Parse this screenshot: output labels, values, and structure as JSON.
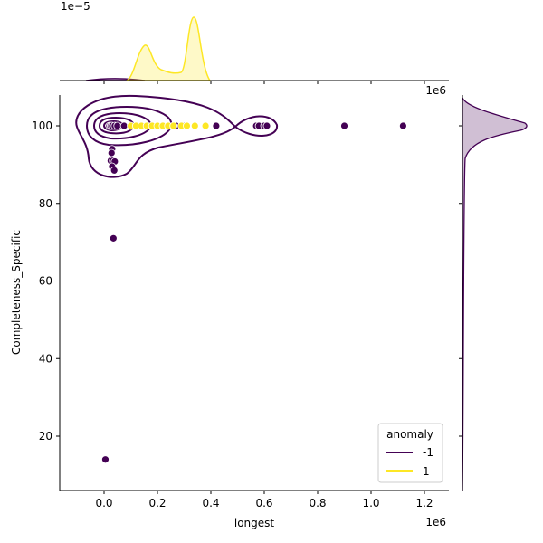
{
  "chart_data": {
    "type": "scatter",
    "xlabel": "longest",
    "ylabel": "Completeness_Specific",
    "x_offset_label": "1e6",
    "top_marginal_offset_label": "1e−5",
    "xlim": [
      -170000,
      1290000
    ],
    "ylim": [
      6,
      108
    ],
    "x_ticks": [
      0,
      200000,
      400000,
      600000,
      800000,
      1000000,
      1200000
    ],
    "x_tick_labels": [
      "0.0",
      "0.2",
      "0.4",
      "0.6",
      "0.8",
      "1.0",
      "1.2"
    ],
    "y_ticks": [
      20,
      40,
      60,
      80,
      100
    ],
    "y_tick_labels": [
      "20",
      "40",
      "60",
      "80",
      "100"
    ],
    "grid": false,
    "legend": {
      "title": "anomaly",
      "placement": "bottom-right",
      "entries": [
        "-1",
        "1"
      ]
    },
    "series": [
      {
        "name": "-1",
        "color": "#440154",
        "points": [
          [
            5000,
            14
          ],
          [
            35000,
            71
          ],
          [
            30000,
            94
          ],
          [
            28000,
            93
          ],
          [
            25000,
            91
          ],
          [
            33000,
            91
          ],
          [
            40000,
            90.8
          ],
          [
            30000,
            89.5
          ],
          [
            38000,
            88.5
          ],
          [
            20000,
            100
          ],
          [
            25000,
            100
          ],
          [
            30000,
            100
          ],
          [
            40000,
            100
          ],
          [
            50000,
            100
          ],
          [
            75000,
            100
          ],
          [
            270000,
            100
          ],
          [
            300000,
            100
          ],
          [
            420000,
            100
          ],
          [
            570000,
            100
          ],
          [
            580000,
            100
          ],
          [
            600000,
            100
          ],
          [
            610000,
            100
          ],
          [
            900000,
            100
          ],
          [
            1120000,
            100
          ]
        ]
      },
      {
        "name": "1",
        "color": "#fde725",
        "points": [
          [
            100000,
            100
          ],
          [
            120000,
            100
          ],
          [
            140000,
            100
          ],
          [
            160000,
            100
          ],
          [
            180000,
            100
          ],
          [
            200000,
            100
          ],
          [
            220000,
            100
          ],
          [
            240000,
            100
          ],
          [
            260000,
            100
          ],
          [
            290000,
            100
          ],
          [
            310000,
            100
          ],
          [
            340000,
            100
          ],
          [
            380000,
            100
          ]
        ]
      }
    ]
  }
}
